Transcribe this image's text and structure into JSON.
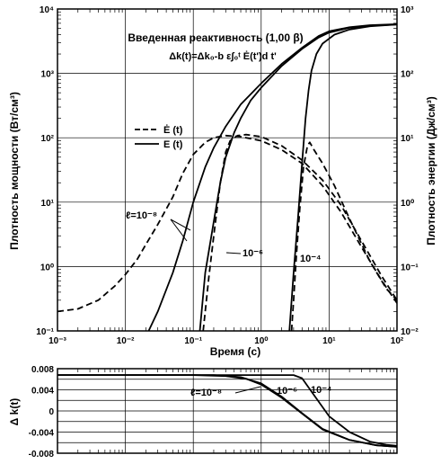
{
  "chart_data": [
    {
      "type": "line",
      "title": "Введенная реактивность (1,00 β)",
      "formula": "Δk(t)=Δk₀-b ε∫₀ᵗ Ė(t')d t'",
      "xlabel": "Время (с)",
      "ylabel": "Плотность мощности (Вт/см³)",
      "ylabel_right": "Плотность энергии (Дж/см³)",
      "xscale": "log",
      "yscale": "log",
      "grid": true,
      "xlim": [
        0.001,
        100
      ],
      "ylim": [
        0.1,
        10000
      ],
      "ylim_right": [
        0.01,
        1000
      ],
      "x_tick_labels": [
        "10⁻³",
        "10⁻²",
        "10⁻¹",
        "10⁰",
        "10¹",
        "10²"
      ],
      "y_tick_labels": [
        "10⁻¹",
        "10⁰",
        "10¹",
        "10²",
        "10³",
        "10⁴"
      ],
      "y_right_tick_labels": [
        "10⁻²",
        "10⁻¹",
        "10⁰",
        "10¹",
        "10²",
        "10³"
      ],
      "legend": {
        "position": "upper-left-center",
        "entries": [
          {
            "label": "Ė (t)",
            "style": "dashed"
          },
          {
            "label": "E (t)",
            "style": "solid"
          }
        ]
      },
      "annotations": [
        "ℓ=10⁻⁸",
        "10⁻⁶",
        "10⁻⁴"
      ],
      "series": [
        {
          "curve": "power ℓ=1e-8",
          "axis": "left",
          "style": "dashed",
          "points": [
            [
              0.001,
              0.2
            ],
            [
              0.002,
              0.22
            ],
            [
              0.004,
              0.3
            ],
            [
              0.007,
              0.5
            ],
            [
              0.01,
              0.75
            ],
            [
              0.015,
              1.3
            ],
            [
              0.02,
              2.2
            ],
            [
              0.03,
              4.5
            ],
            [
              0.05,
              12
            ],
            [
              0.07,
              28
            ],
            [
              0.1,
              55
            ],
            [
              0.15,
              85
            ],
            [
              0.2,
              100
            ],
            [
              0.3,
              108
            ],
            [
              0.5,
              104
            ],
            [
              1,
              90
            ],
            [
              2,
              65
            ],
            [
              4,
              40
            ],
            [
              8,
              18
            ],
            [
              15,
              7
            ],
            [
              30,
              2
            ],
            [
              60,
              0.6
            ],
            [
              100,
              0.27
            ]
          ]
        },
        {
          "curve": "energy ℓ=1e-8",
          "axis": "right",
          "style": "solid",
          "points": [
            [
              0.022,
              0.01
            ],
            [
              0.03,
              0.02
            ],
            [
              0.05,
              0.08
            ],
            [
              0.07,
              0.25
            ],
            [
              0.1,
              1
            ],
            [
              0.15,
              3.5
            ],
            [
              0.2,
              7
            ],
            [
              0.3,
              15
            ],
            [
              0.5,
              33
            ],
            [
              1,
              70
            ],
            [
              2,
              140
            ],
            [
              4,
              250
            ],
            [
              7,
              380
            ],
            [
              10,
              450
            ],
            [
              20,
              520
            ],
            [
              40,
              560
            ],
            [
              100,
              580
            ]
          ]
        },
        {
          "curve": "power ℓ=1e-6",
          "axis": "left",
          "style": "dashed",
          "points": [
            [
              0.14,
              0.1
            ],
            [
              0.15,
              0.2
            ],
            [
              0.17,
              0.7
            ],
            [
              0.2,
              3
            ],
            [
              0.25,
              20
            ],
            [
              0.3,
              60
            ],
            [
              0.35,
              90
            ],
            [
              0.45,
              108
            ],
            [
              0.6,
              112
            ],
            [
              1,
              104
            ],
            [
              2,
              75
            ],
            [
              4,
              45
            ],
            [
              8,
              22
            ],
            [
              15,
              9
            ],
            [
              30,
              2.5
            ],
            [
              60,
              0.7
            ],
            [
              100,
              0.3
            ]
          ]
        },
        {
          "curve": "energy ℓ=1e-6",
          "axis": "right",
          "style": "solid",
          "points": [
            [
              0.125,
              0.01
            ],
            [
              0.15,
              0.08
            ],
            [
              0.2,
              0.5
            ],
            [
              0.25,
              2
            ],
            [
              0.3,
              5
            ],
            [
              0.4,
              12
            ],
            [
              0.5,
              20
            ],
            [
              0.7,
              38
            ],
            [
              1,
              60
            ],
            [
              2,
              130
            ],
            [
              4,
              240
            ],
            [
              7,
              360
            ],
            [
              10,
              430
            ],
            [
              20,
              510
            ],
            [
              40,
              550
            ],
            [
              100,
              575
            ]
          ]
        },
        {
          "curve": "power ℓ=1e-4",
          "axis": "left",
          "style": "dashed",
          "points": [
            [
              2.8,
              0.1
            ],
            [
              3,
              0.3
            ],
            [
              3.3,
              1.5
            ],
            [
              3.7,
              8
            ],
            [
              4.2,
              35
            ],
            [
              4.8,
              75
            ],
            [
              5.2,
              85
            ],
            [
              6,
              65
            ],
            [
              8,
              40
            ],
            [
              12,
              18
            ],
            [
              20,
              5.5
            ],
            [
              40,
              1.2
            ],
            [
              70,
              0.45
            ],
            [
              100,
              0.3
            ]
          ]
        },
        {
          "curve": "energy ℓ=1e-4",
          "axis": "right",
          "style": "solid",
          "points": [
            [
              2.6,
              0.01
            ],
            [
              3,
              0.08
            ],
            [
              3.5,
              0.6
            ],
            [
              4,
              4
            ],
            [
              4.5,
              20
            ],
            [
              5,
              55
            ],
            [
              5.5,
              110
            ],
            [
              6.5,
              200
            ],
            [
              8,
              290
            ],
            [
              12,
              400
            ],
            [
              20,
              480
            ],
            [
              40,
              540
            ],
            [
              100,
              575
            ]
          ]
        }
      ]
    },
    {
      "type": "line",
      "ylabel": "Δ k(t)",
      "xscale": "log",
      "grid": true,
      "xlim": [
        0.001,
        100
      ],
      "ylim": [
        -0.008,
        0.008
      ],
      "y_tick_labels": [
        "0.008",
        "0.004",
        "0",
        "-0.004",
        "-0.008"
      ],
      "annotations": [
        "ℓ=10⁻⁸",
        "10⁻⁶",
        "10⁻⁴"
      ],
      "series": [
        {
          "curve": "dk ℓ=1e-8",
          "points": [
            [
              0.001,
              0.0068
            ],
            [
              0.1,
              0.0068
            ],
            [
              0.3,
              0.0066
            ],
            [
              0.6,
              0.0061
            ],
            [
              1,
              0.005
            ],
            [
              2,
              0.0025
            ],
            [
              4,
              -0.0005
            ],
            [
              8,
              -0.0035
            ],
            [
              20,
              -0.0055
            ],
            [
              50,
              -0.0065
            ],
            [
              100,
              -0.0068
            ]
          ]
        },
        {
          "curve": "dk ℓ=1e-6",
          "points": [
            [
              0.001,
              0.0068
            ],
            [
              0.2,
              0.0068
            ],
            [
              0.5,
              0.0064
            ],
            [
              1,
              0.0052
            ],
            [
              2,
              0.0027
            ],
            [
              4,
              -0.0004
            ],
            [
              8,
              -0.0034
            ],
            [
              20,
              -0.0055
            ],
            [
              50,
              -0.0065
            ],
            [
              100,
              -0.0068
            ]
          ]
        },
        {
          "curve": "dk ℓ=1e-4",
          "points": [
            [
              0.001,
              0.0068
            ],
            [
              3,
              0.0068
            ],
            [
              4,
              0.0062
            ],
            [
              6,
              0.003
            ],
            [
              10,
              -0.001
            ],
            [
              20,
              -0.004
            ],
            [
              40,
              -0.0058
            ],
            [
              70,
              -0.0064
            ],
            [
              100,
              -0.0066
            ]
          ]
        }
      ]
    }
  ]
}
